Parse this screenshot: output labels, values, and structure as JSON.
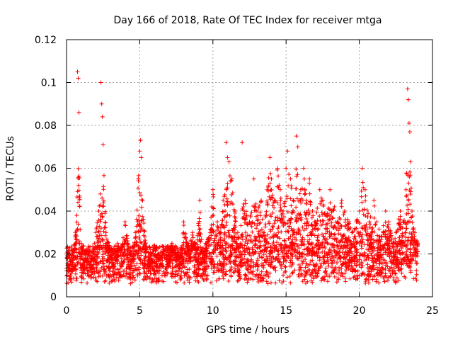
{
  "chart_data": {
    "type": "scatter",
    "title": "Day 166 of 2018, Rate Of TEC Index for receiver mtga",
    "xlabel": "GPS time / hours",
    "ylabel": "ROTI / TECUs",
    "xlim": [
      0,
      25
    ],
    "ylim": [
      0,
      0.12
    ],
    "x_ticks": [
      0,
      5,
      10,
      15,
      20,
      25
    ],
    "x_tick_labels": [
      "0",
      "5",
      "10",
      "15",
      "20",
      "25"
    ],
    "y_ticks": [
      0,
      0.02,
      0.04,
      0.06,
      0.08,
      0.1,
      0.12
    ],
    "y_tick_labels": [
      "0",
      "0.02",
      "0.04",
      "0.06",
      "0.08",
      "0.1",
      "0.12"
    ],
    "grid": true,
    "marker": "+",
    "series": [
      {
        "name": "ROTI",
        "color": "#ff0000",
        "x": [
          0.0,
          0.2,
          0.3,
          0.5,
          0.6,
          0.7,
          0.75,
          0.8,
          0.85,
          0.9,
          1.0,
          1.1,
          1.3,
          1.5,
          1.7,
          1.9,
          2.0,
          2.2,
          2.3,
          2.35,
          2.4,
          2.45,
          2.5,
          2.7,
          3.0,
          3.2,
          3.4,
          3.5,
          3.7,
          4.0,
          4.2,
          4.5,
          4.7,
          4.9,
          5.0,
          5.05,
          5.1,
          5.2,
          5.4,
          5.6,
          5.8,
          6.0,
          6.3,
          6.6,
          6.9,
          7.2,
          7.5,
          7.8,
          8.0,
          8.3,
          8.6,
          8.9,
          9.1,
          9.3,
          9.5,
          9.8,
          10.0,
          10.3,
          10.5,
          10.7,
          10.9,
          11.0,
          11.1,
          11.3,
          11.5,
          11.7,
          11.9,
          12.0,
          12.2,
          12.5,
          12.8,
          13.0,
          13.3,
          13.5,
          13.7,
          13.9,
          14.0,
          14.2,
          14.4,
          14.6,
          14.8,
          15.0,
          15.1,
          15.3,
          15.5,
          15.7,
          15.8,
          16.0,
          16.2,
          16.4,
          16.6,
          16.8,
          17.0,
          17.3,
          17.5,
          17.8,
          18.0,
          18.3,
          18.5,
          18.8,
          19.0,
          19.3,
          19.5,
          19.8,
          20.0,
          20.2,
          20.4,
          20.7,
          21.0,
          21.2,
          21.5,
          21.8,
          22.0,
          22.3,
          22.5,
          22.8,
          23.0,
          23.2,
          23.3,
          23.35,
          23.4,
          23.45,
          23.5,
          23.6,
          23.8,
          24.0
        ],
        "y": [
          0.02,
          0.018,
          0.015,
          0.022,
          0.03,
          0.038,
          0.105,
          0.102,
          0.086,
          0.047,
          0.025,
          0.015,
          0.02,
          0.012,
          0.018,
          0.025,
          0.03,
          0.04,
          0.048,
          0.1,
          0.09,
          0.084,
          0.071,
          0.03,
          0.022,
          0.015,
          0.018,
          0.025,
          0.02,
          0.035,
          0.025,
          0.018,
          0.03,
          0.055,
          0.068,
          0.073,
          0.065,
          0.045,
          0.025,
          0.015,
          0.02,
          0.012,
          0.018,
          0.022,
          0.015,
          0.025,
          0.02,
          0.018,
          0.035,
          0.025,
          0.03,
          0.022,
          0.045,
          0.02,
          0.025,
          0.03,
          0.05,
          0.035,
          0.03,
          0.045,
          0.072,
          0.065,
          0.063,
          0.055,
          0.04,
          0.03,
          0.025,
          0.072,
          0.045,
          0.035,
          0.055,
          0.04,
          0.045,
          0.03,
          0.05,
          0.065,
          0.055,
          0.045,
          0.06,
          0.05,
          0.04,
          0.06,
          0.068,
          0.055,
          0.045,
          0.075,
          0.07,
          0.05,
          0.06,
          0.045,
          0.055,
          0.04,
          0.035,
          0.05,
          0.045,
          0.038,
          0.05,
          0.042,
          0.035,
          0.045,
          0.04,
          0.035,
          0.03,
          0.035,
          0.04,
          0.06,
          0.05,
          0.035,
          0.045,
          0.035,
          0.028,
          0.04,
          0.035,
          0.025,
          0.03,
          0.04,
          0.035,
          0.05,
          0.097,
          0.092,
          0.081,
          0.077,
          0.063,
          0.04,
          0.03,
          0.025
        ]
      }
    ]
  }
}
